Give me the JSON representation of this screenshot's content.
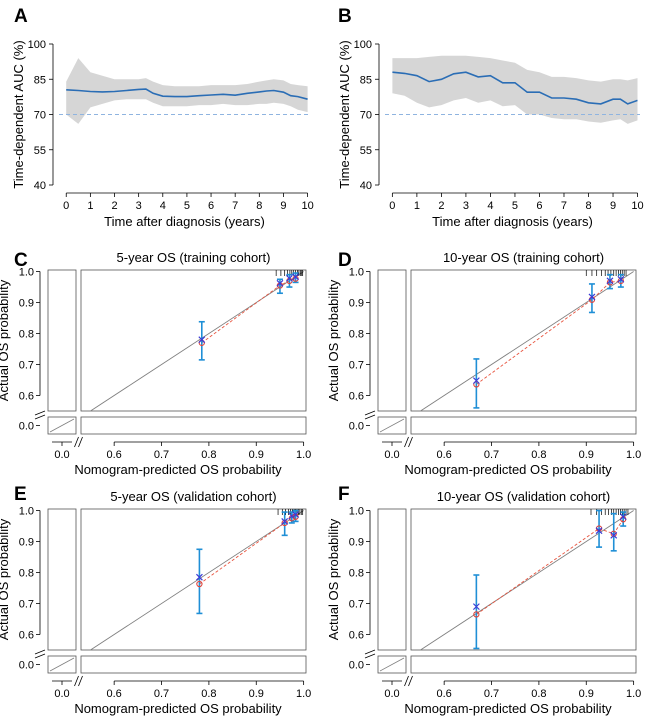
{
  "chart_data": [
    {
      "panel": "A",
      "type": "line",
      "xlabel": "Time after diagnosis (years)",
      "ylabel": "Time-dependent AUC (%)",
      "xlim": [
        -0.3,
        10.1
      ],
      "ylim": [
        40,
        100
      ],
      "xticks": [
        0,
        1,
        2,
        3,
        4,
        5,
        6,
        7,
        8,
        9,
        10
      ],
      "yticks": [
        40,
        55,
        70,
        85,
        100
      ],
      "reference_line": 70,
      "x": [
        0,
        0.5,
        1,
        1.5,
        2,
        2.5,
        3,
        3.3,
        3.6,
        4,
        4.5,
        5,
        5.5,
        6,
        6.5,
        7,
        7.5,
        8,
        8.3,
        8.6,
        9,
        9.3,
        9.6,
        10
      ],
      "auc": [
        80.5,
        80.2,
        79.8,
        79.6,
        79.8,
        80.2,
        80.7,
        80.8,
        79,
        77.8,
        77.6,
        77.6,
        78,
        78.3,
        78.6,
        78.2,
        79,
        79.6,
        80,
        80.2,
        79.5,
        78,
        77.6,
        76.5
      ],
      "lower": [
        70,
        66,
        73,
        74.5,
        76,
        76.5,
        76.5,
        76.5,
        75,
        73.5,
        73.5,
        73.5,
        74,
        74,
        74.5,
        74,
        74,
        74.5,
        74.5,
        75,
        74.5,
        73.5,
        72,
        71
      ],
      "upper": [
        84,
        94,
        88,
        86.5,
        85,
        85,
        85,
        85.5,
        84,
        82.5,
        82,
        82,
        82,
        82.5,
        82.5,
        82.5,
        83,
        84,
        84.5,
        85,
        84.5,
        83,
        82.5,
        82
      ]
    },
    {
      "panel": "B",
      "type": "line",
      "xlabel": "Time after diagnosis (years)",
      "ylabel": "Time-dependent AUC (%)",
      "xlim": [
        -0.3,
        10.1
      ],
      "ylim": [
        40,
        100
      ],
      "xticks": [
        0,
        1,
        2,
        3,
        4,
        5,
        6,
        7,
        8,
        9,
        10
      ],
      "yticks": [
        40,
        55,
        70,
        85,
        100
      ],
      "reference_line": 70,
      "x": [
        0,
        0.5,
        1,
        1.5,
        2,
        2.5,
        3,
        3.5,
        4,
        4.5,
        5,
        5.5,
        6,
        6.5,
        7,
        7.5,
        8,
        8.5,
        9,
        9.3,
        9.6,
        10
      ],
      "auc": [
        88,
        87.5,
        86.5,
        84,
        85,
        87.3,
        88,
        86,
        86.5,
        83.5,
        83.5,
        79.5,
        79.5,
        77,
        77,
        76.5,
        75,
        74.5,
        76.5,
        76.5,
        74.5,
        76
      ],
      "lower": [
        79,
        78,
        75,
        73,
        74,
        76,
        77,
        75,
        76,
        73.5,
        74,
        70,
        70,
        68.5,
        68,
        68,
        67,
        66.5,
        67.5,
        68,
        66,
        67.5
      ],
      "upper": [
        94,
        94,
        94,
        94.5,
        95,
        95,
        95,
        94.5,
        94,
        93,
        92,
        89,
        88,
        86,
        86,
        85.5,
        84.5,
        84,
        85,
        85,
        84.5,
        85.5
      ]
    },
    {
      "panel": "C",
      "type": "scatter",
      "title": "5-year OS (training cohort)",
      "xlabel": "Nomogram-predicted OS probability",
      "ylabel": "Actual OS probability",
      "xticks_main": [
        0.6,
        0.7,
        0.8,
        0.9,
        1.0
      ],
      "xtick_broken": "0.0",
      "yticks_main": [
        0.6,
        0.7,
        0.8,
        0.9,
        1.0
      ],
      "ytick_broken": "0.0",
      "xlim": [
        0.53,
        1.005
      ],
      "ylim": [
        0.55,
        1.005
      ],
      "predicted": [
        0.785,
        0.95,
        0.97,
        0.983
      ],
      "observed_circle": [
        0.77,
        0.955,
        0.97,
        0.977
      ],
      "observed_cross": [
        0.78,
        0.962,
        0.978,
        0.983
      ],
      "ci_low": [
        0.715,
        0.93,
        0.95,
        0.965
      ],
      "ci_high": [
        0.838,
        0.975,
        0.99,
        0.995
      ],
      "rug": [
        0.942,
        0.952,
        0.96,
        0.966,
        0.971,
        0.975,
        0.979,
        0.983,
        0.987,
        0.99,
        0.993,
        0.996,
        0.998
      ]
    },
    {
      "panel": "D",
      "type": "scatter",
      "title": "10-year OS (training cohort)",
      "xlabel": "Nomogram-predicted OS probability",
      "ylabel": "Actual OS probability",
      "xticks_main": [
        0.6,
        0.7,
        0.8,
        0.9,
        1.0
      ],
      "xtick_broken": "0.0",
      "yticks_main": [
        0.6,
        0.7,
        0.8,
        0.9,
        1.0
      ],
      "ytick_broken": "0.0",
      "xlim": [
        0.53,
        1.005
      ],
      "ylim": [
        0.55,
        1.005
      ],
      "predicted": [
        0.668,
        0.912,
        0.95,
        0.973
      ],
      "observed_circle": [
        0.636,
        0.909,
        0.965,
        0.97
      ],
      "observed_cross": [
        0.648,
        0.918,
        0.97,
        0.975
      ],
      "ci_low": [
        0.56,
        0.868,
        0.945,
        0.95
      ],
      "ci_high": [
        0.718,
        0.96,
        0.99,
        0.99
      ],
      "rug": [
        0.9,
        0.912,
        0.922,
        0.932,
        0.94,
        0.946,
        0.952,
        0.958,
        0.963,
        0.968,
        0.972,
        0.976,
        0.98,
        0.984
      ]
    },
    {
      "panel": "E",
      "type": "scatter",
      "title": "5-year OS (validation cohort)",
      "xlabel": "Nomogram-predicted OS probability",
      "ylabel": "Actual OS probability",
      "xticks_main": [
        0.6,
        0.7,
        0.8,
        0.9,
        1.0
      ],
      "xtick_broken": "0.0",
      "yticks_main": [
        0.6,
        0.7,
        0.8,
        0.9,
        1.0
      ],
      "ytick_broken": "0.0",
      "xlim": [
        0.53,
        1.005
      ],
      "ylim": [
        0.55,
        1.005
      ],
      "predicted": [
        0.78,
        0.96,
        0.975,
        0.983
      ],
      "observed_circle": [
        0.763,
        0.96,
        0.975,
        0.98
      ],
      "observed_cross": [
        0.785,
        0.965,
        0.982,
        0.987
      ],
      "ci_low": [
        0.668,
        0.92,
        0.96,
        0.965
      ],
      "ci_high": [
        0.875,
        0.995,
        0.995,
        1.0
      ],
      "rug": [
        0.946,
        0.955,
        0.962,
        0.968,
        0.972,
        0.976,
        0.98,
        0.983,
        0.986,
        0.989,
        0.992,
        0.995,
        0.998
      ]
    },
    {
      "panel": "F",
      "type": "scatter",
      "title": "10-year OS (validation cohort)",
      "xlabel": "Nomogram-predicted OS probability",
      "ylabel": "Actual OS probability",
      "xticks_main": [
        0.6,
        0.7,
        0.8,
        0.9,
        1.0
      ],
      "xtick_broken": "0.0",
      "yticks_main": [
        0.6,
        0.7,
        0.8,
        0.9,
        1.0
      ],
      "ytick_broken": "0.0",
      "xlim": [
        0.53,
        1.005
      ],
      "ylim": [
        0.55,
        1.005
      ],
      "predicted": [
        0.668,
        0.927,
        0.958,
        0.978
      ],
      "observed_circle": [
        0.665,
        0.942,
        0.925,
        0.972
      ],
      "observed_cross": [
        0.69,
        0.935,
        0.92,
        0.98
      ],
      "ci_low": [
        0.555,
        0.882,
        0.87,
        0.95
      ],
      "ci_high": [
        0.792,
        1.0,
        0.99,
        0.995
      ],
      "rug": [
        0.91,
        0.922,
        0.932,
        0.94,
        0.947,
        0.953,
        0.958,
        0.963,
        0.968,
        0.972,
        0.976,
        0.98,
        0.984,
        0.988
      ]
    }
  ],
  "colors": {
    "auc_line": "#2a6db5",
    "ci_band": "#d6d6d6",
    "reference_line": "#8fb4e0",
    "ideal_line": "#7f7f7f",
    "fit_line": "#e8543f",
    "error_bar": "#1f8fd6",
    "circle": "#e0433a",
    "cross": "#3b3bd6"
  }
}
